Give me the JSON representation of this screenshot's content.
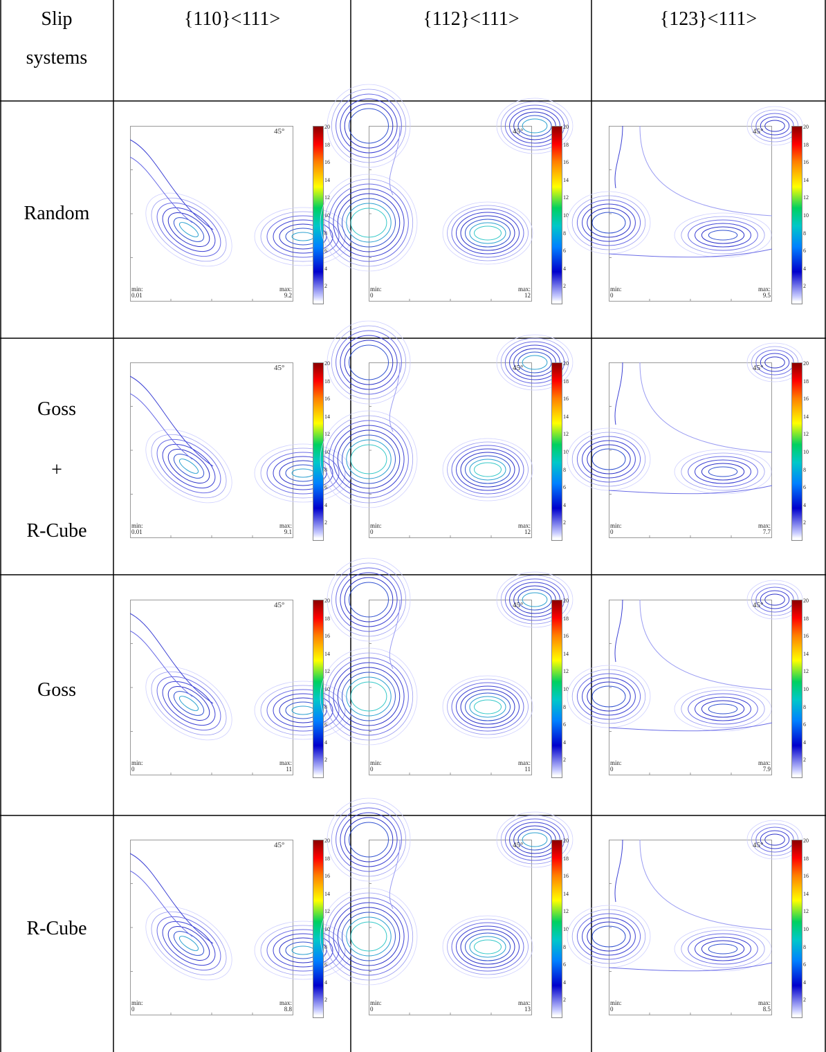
{
  "header": {
    "corner": [
      "Slip",
      "systems"
    ],
    "columns": [
      "{110}<111>",
      "{112}<111>",
      "{123}<111>"
    ]
  },
  "rows": [
    {
      "label": [
        "Random"
      ]
    },
    {
      "label": [
        "Goss",
        "+",
        "R-Cube"
      ]
    },
    {
      "label": [
        "Goss"
      ]
    },
    {
      "label": [
        "R-Cube"
      ]
    }
  ],
  "plots": [
    [
      {
        "min": "0.01",
        "max": "9.2"
      },
      {
        "min": "0",
        "max": "12"
      },
      {
        "min": "0",
        "max": "9.5"
      }
    ],
    [
      {
        "min": "0.01",
        "max": "9.1"
      },
      {
        "min": "0",
        "max": "12"
      },
      {
        "min": "0",
        "max": "7.7"
      }
    ],
    [
      {
        "min": "0",
        "max": "11"
      },
      {
        "min": "0",
        "max": "11"
      },
      {
        "min": "0",
        "max": "7.9"
      }
    ],
    [
      {
        "min": "0",
        "max": "8.8"
      },
      {
        "min": "0",
        "max": "13"
      },
      {
        "min": "0",
        "max": "8.5"
      }
    ]
  ],
  "labels": {
    "min_prefix": "min:",
    "max_prefix": "max:",
    "angle": "45°"
  },
  "colorbar": {
    "ticks": [
      "2",
      "4",
      "6",
      "8",
      "10",
      "12",
      "14",
      "16",
      "18",
      "20"
    ]
  }
}
